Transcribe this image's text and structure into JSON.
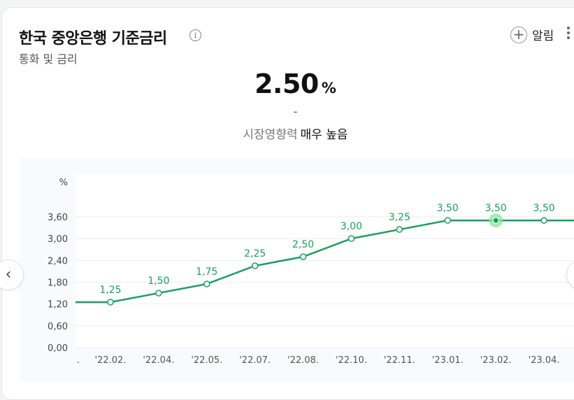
{
  "header": {
    "title": "한국 중앙은행 기준금리",
    "subtitle": "통화 및 금리",
    "info_icon": "info-icon",
    "alert_label": "알림",
    "alert_icon": "plus-icon",
    "more_icon": "more-vertical-icon"
  },
  "summary": {
    "value": "2.50",
    "unit": "%",
    "change": "-",
    "impact_label": "시장영향력",
    "impact_value": "매우 높음"
  },
  "nav": {
    "prev_icon": "chevron-left-icon",
    "next_icon": "chevron-right-icon"
  },
  "colors": {
    "line": "#17a05d",
    "highlight": "#8ee29c",
    "grid": "#eceef1"
  },
  "chart_data": {
    "type": "line",
    "ylabel": "%",
    "ylim": [
      0,
      3.6
    ],
    "y_ticks": [
      "3,60",
      "3,00",
      "2,40",
      "1,80",
      "1,20",
      "0,60",
      "0,00"
    ],
    "y_tick_values": [
      3.6,
      3.0,
      2.4,
      1.8,
      1.2,
      0.6,
      0.0
    ],
    "first_tick_fragment": ".",
    "categories": [
      "'22.02.",
      "'22.04.",
      "'22.05.",
      "'22.07.",
      "'22.08.",
      "'22.10.",
      "'22.11.",
      "'23.01.",
      "'23.02.",
      "'23.04."
    ],
    "values": [
      1.25,
      1.5,
      1.75,
      2.25,
      2.5,
      3.0,
      3.25,
      3.5,
      3.5,
      3.5
    ],
    "data_labels": [
      "1,25",
      "1,50",
      "1,75",
      "2,25",
      "2,50",
      "3,00",
      "3,25",
      "3,50",
      "3,50",
      "3,50"
    ],
    "start_value": 1.25,
    "end_value": 3.5,
    "highlight_index": 8,
    "grid": true
  }
}
